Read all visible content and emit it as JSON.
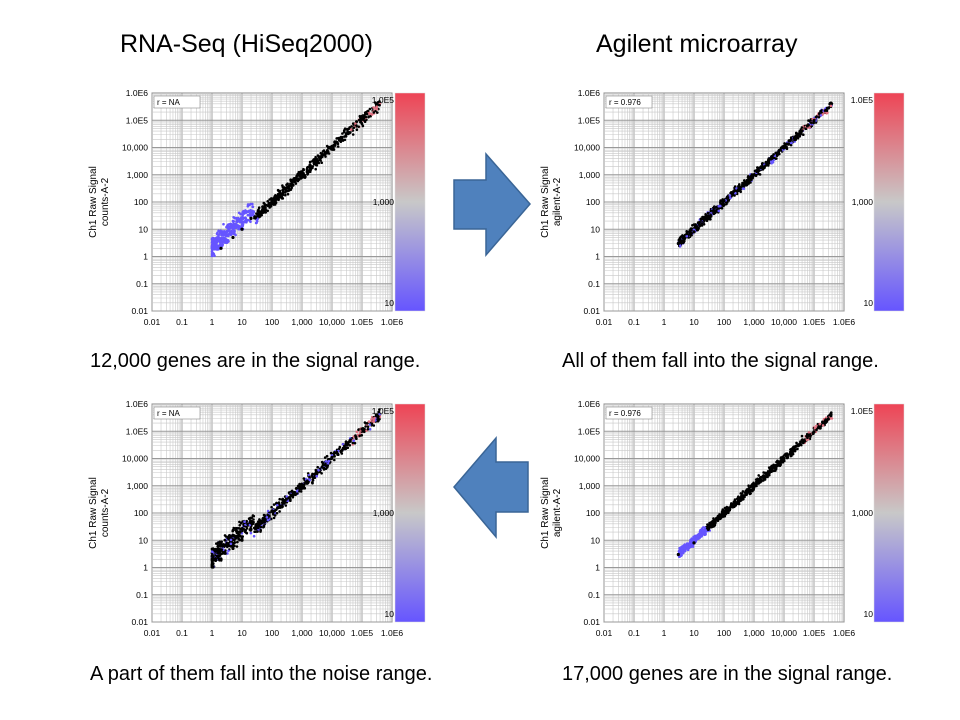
{
  "titles": {
    "left": "RNA-Seq (HiSeq2000)",
    "right": "Agilent microarray"
  },
  "captions": {
    "top_left": "12,000 genes are in the signal range.",
    "top_right": "All of them fall into the signal range.",
    "bottom_left": "A part of them fall into the noise range.",
    "bottom_right": "17,000 genes are in the signal range."
  },
  "arrows": {
    "top": "right",
    "bottom": "left",
    "color": "#4f81bd"
  },
  "colors": {
    "low": "#6655ff",
    "mid": "#c8c8c8",
    "high": "#ee4455",
    "highlight": "#000000"
  },
  "chart_data": [
    {
      "type": "scatter",
      "scale": "log",
      "ylabel": "Ch1 Raw Signal",
      "ylabel2": "counts-A-2",
      "annotation": "r = NA",
      "ylim": [
        0.01,
        1000000
      ],
      "xlim": [
        0.01,
        1000000
      ],
      "x_ticks": [
        "0.01",
        "0.1",
        "1",
        "10",
        "100",
        "1,000",
        "10,000",
        "1.0E5",
        "1.0E6"
      ],
      "y_ticks": [
        "0.01",
        "0.1",
        "1",
        "10",
        "100",
        "1,000",
        "10,000",
        "1.0E5",
        "1.0E6"
      ],
      "colorbar_ticks": [
        "1.0E5",
        "1,000",
        "10"
      ],
      "highlight": "signal",
      "points": [
        [
          2,
          2
        ],
        [
          5,
          5
        ],
        [
          10,
          10
        ],
        [
          20,
          25
        ],
        [
          50,
          60
        ],
        [
          100,
          120
        ],
        [
          300,
          320
        ],
        [
          1000,
          1100
        ],
        [
          3000,
          3200
        ],
        [
          10000,
          11000
        ],
        [
          30000,
          32000
        ],
        [
          100000,
          120000
        ],
        [
          300000,
          400000
        ]
      ]
    },
    {
      "type": "scatter",
      "scale": "log",
      "ylabel": "Ch1 Raw Signal",
      "ylabel2": "agilent-A-2",
      "annotation": "r = 0.976",
      "ylim": [
        0.01,
        1000000
      ],
      "xlim": [
        0.01,
        1000000
      ],
      "x_ticks": [
        "0.01",
        "0.1",
        "1",
        "10",
        "100",
        "1,000",
        "10,000",
        "1.0E5",
        "1.0E6"
      ],
      "y_ticks": [
        "0.01",
        "0.1",
        "1",
        "10",
        "100",
        "1,000",
        "10,000",
        "1.0E5",
        "1.0E6"
      ],
      "colorbar_ticks": [
        "1.0E5",
        "1,000",
        "10"
      ],
      "highlight": "mapped",
      "points": [
        [
          3,
          3
        ],
        [
          10,
          8
        ],
        [
          30,
          25
        ],
        [
          100,
          110
        ],
        [
          300,
          280
        ],
        [
          1000,
          1000
        ],
        [
          3000,
          3100
        ],
        [
          10000,
          10000
        ],
        [
          30000,
          31000
        ],
        [
          100000,
          95000
        ],
        [
          300000,
          280000
        ]
      ]
    },
    {
      "type": "scatter",
      "scale": "log",
      "ylabel": "Ch1 Raw Signal",
      "ylabel2": "counts-A-2",
      "annotation": "r = NA",
      "ylim": [
        0.01,
        1000000
      ],
      "xlim": [
        0.01,
        1000000
      ],
      "x_ticks": [
        "0.01",
        "0.1",
        "1",
        "10",
        "100",
        "1,000",
        "10,000",
        "1.0E5",
        "1.0E6"
      ],
      "y_ticks": [
        "0.01",
        "0.1",
        "1",
        "10",
        "100",
        "1,000",
        "10,000",
        "1.0E5",
        "1.0E6"
      ],
      "colorbar_ticks": [
        "1.0E5",
        "1,000",
        "10"
      ],
      "highlight": "mapped",
      "points": [
        [
          2,
          2
        ],
        [
          5,
          5
        ],
        [
          10,
          10
        ],
        [
          20,
          25
        ],
        [
          50,
          60
        ],
        [
          100,
          120
        ],
        [
          300,
          320
        ],
        [
          1000,
          1100
        ],
        [
          3000,
          3200
        ],
        [
          10000,
          11000
        ],
        [
          30000,
          32000
        ],
        [
          100000,
          120000
        ],
        [
          300000,
          400000
        ]
      ]
    },
    {
      "type": "scatter",
      "scale": "log",
      "ylabel": "Ch1 Raw Signal",
      "ylabel2": "agilent-A-2",
      "annotation": "r = 0.976",
      "ylim": [
        0.01,
        1000000
      ],
      "xlim": [
        0.01,
        1000000
      ],
      "x_ticks": [
        "0.01",
        "0.1",
        "1",
        "10",
        "100",
        "1,000",
        "10,000",
        "1.0E5",
        "1.0E6"
      ],
      "y_ticks": [
        "0.01",
        "0.1",
        "1",
        "10",
        "100",
        "1,000",
        "10,000",
        "1.0E5",
        "1.0E6"
      ],
      "colorbar_ticks": [
        "1.0E5",
        "1,000",
        "10"
      ],
      "highlight": "signal",
      "points": [
        [
          3,
          3
        ],
        [
          10,
          8
        ],
        [
          30,
          25
        ],
        [
          100,
          110
        ],
        [
          300,
          280
        ],
        [
          1000,
          1000
        ],
        [
          3000,
          3100
        ],
        [
          10000,
          10000
        ],
        [
          30000,
          31000
        ],
        [
          100000,
          95000
        ],
        [
          300000,
          280000
        ]
      ]
    }
  ]
}
